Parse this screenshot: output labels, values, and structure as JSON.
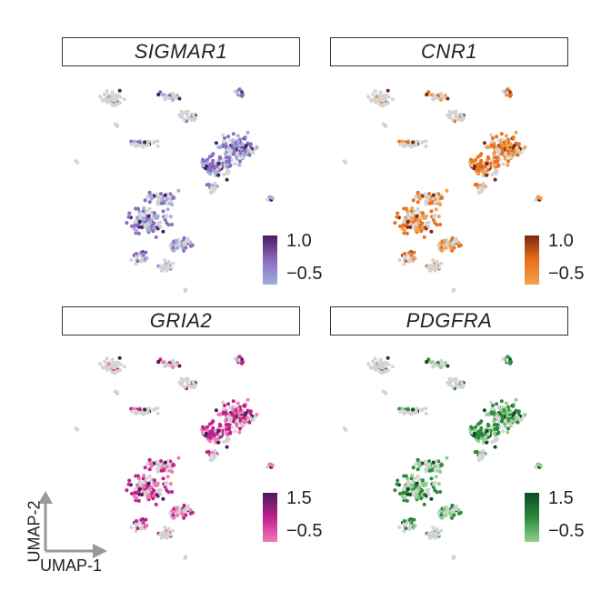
{
  "panels": [
    {
      "title": "SIGMAR1",
      "high": "1.0",
      "low": "−0.5",
      "color_high": "#4b1c5e",
      "color_low": "#9db0d9",
      "color_mid": "#8a6cc0"
    },
    {
      "title": "CNR1",
      "high": "1.0",
      "low": "−0.5",
      "color_high": "#7a2a10",
      "color_low": "#f5a04a",
      "color_mid": "#e8701e"
    },
    {
      "title": "GRIA2",
      "high": "1.5",
      "low": "−0.5",
      "color_high": "#4a1a5a",
      "color_low": "#f07ab2",
      "color_mid": "#c0208e"
    },
    {
      "title": "PDGFRA",
      "high": "1.5",
      "low": "−0.5",
      "color_high": "#0d4a22",
      "color_low": "#8fd18c",
      "color_mid": "#2a8a3c"
    }
  ],
  "axes": {
    "x_label": "UMAP-1",
    "y_label": "UMAP-2"
  },
  "background_cell_color": "#d3d3d3"
}
